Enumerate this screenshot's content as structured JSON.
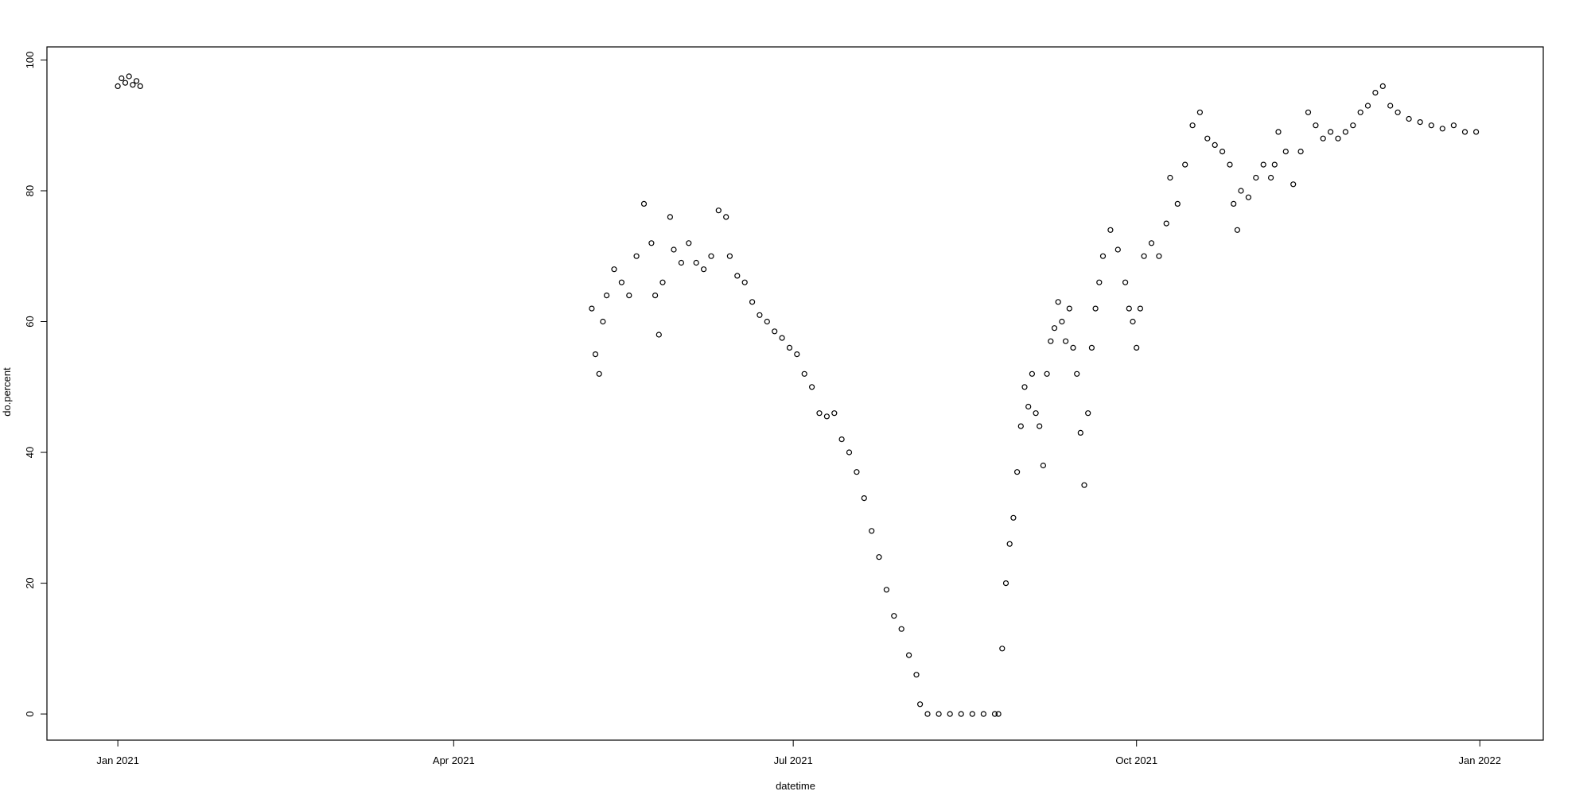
{
  "chart_data": {
    "type": "scatter",
    "title": "",
    "xlabel": "datetime",
    "ylabel": "do.percent",
    "xlim": [
      "2020-12-13",
      "2022-01-18"
    ],
    "ylim": [
      -4,
      102
    ],
    "grid": false,
    "legend": "none",
    "marker": "open-circle",
    "colors": {
      "points": "#000000",
      "axes": "#000000",
      "background": "#ffffff"
    },
    "x_ticks": [
      {
        "value": "2021-01-01",
        "label": "Jan 2021"
      },
      {
        "value": "2021-04-01",
        "label": "Apr 2021"
      },
      {
        "value": "2021-07-01",
        "label": "Jul 2021"
      },
      {
        "value": "2021-10-01",
        "label": "Oct 2021"
      },
      {
        "value": "2022-01-01",
        "label": "Jan 2022"
      }
    ],
    "y_ticks": [
      {
        "value": 0,
        "label": "0"
      },
      {
        "value": 20,
        "label": "20"
      },
      {
        "value": 40,
        "label": "40"
      },
      {
        "value": 60,
        "label": "60"
      },
      {
        "value": 80,
        "label": "80"
      },
      {
        "value": 100,
        "label": "100"
      }
    ],
    "series": [
      {
        "points": [
          [
            "2021-01-01",
            96.0
          ],
          [
            "2021-01-02",
            97.2
          ],
          [
            "2021-01-03",
            96.5
          ],
          [
            "2021-01-04",
            97.5
          ],
          [
            "2021-01-05",
            96.2
          ],
          [
            "2021-01-06",
            96.8
          ],
          [
            "2021-01-07",
            96.0
          ],
          [
            "2021-05-08",
            62.0
          ],
          [
            "2021-05-09",
            55.0
          ],
          [
            "2021-05-10",
            52.0
          ],
          [
            "2021-05-11",
            60.0
          ],
          [
            "2021-05-12",
            64.0
          ],
          [
            "2021-05-14",
            68.0
          ],
          [
            "2021-05-16",
            66.0
          ],
          [
            "2021-05-18",
            64.0
          ],
          [
            "2021-05-20",
            70.0
          ],
          [
            "2021-05-22",
            78.0
          ],
          [
            "2021-05-24",
            72.0
          ],
          [
            "2021-05-25",
            64.0
          ],
          [
            "2021-05-26",
            58.0
          ],
          [
            "2021-05-27",
            66.0
          ],
          [
            "2021-05-29",
            76.0
          ],
          [
            "2021-05-30",
            71.0
          ],
          [
            "2021-06-01",
            69.0
          ],
          [
            "2021-06-03",
            72.0
          ],
          [
            "2021-06-05",
            69.0
          ],
          [
            "2021-06-07",
            68.0
          ],
          [
            "2021-06-09",
            70.0
          ],
          [
            "2021-06-11",
            77.0
          ],
          [
            "2021-06-13",
            76.0
          ],
          [
            "2021-06-14",
            70.0
          ],
          [
            "2021-06-16",
            67.0
          ],
          [
            "2021-06-18",
            66.0
          ],
          [
            "2021-06-20",
            63.0
          ],
          [
            "2021-06-22",
            61.0
          ],
          [
            "2021-06-24",
            60.0
          ],
          [
            "2021-06-26",
            58.5
          ],
          [
            "2021-06-28",
            57.5
          ],
          [
            "2021-06-30",
            56.0
          ],
          [
            "2021-07-02",
            55.0
          ],
          [
            "2021-07-04",
            52.0
          ],
          [
            "2021-07-06",
            50.0
          ],
          [
            "2021-07-08",
            46.0
          ],
          [
            "2021-07-10",
            45.5
          ],
          [
            "2021-07-12",
            46.0
          ],
          [
            "2021-07-14",
            42.0
          ],
          [
            "2021-07-16",
            40.0
          ],
          [
            "2021-07-18",
            37.0
          ],
          [
            "2021-07-20",
            33.0
          ],
          [
            "2021-07-22",
            28.0
          ],
          [
            "2021-07-24",
            24.0
          ],
          [
            "2021-07-26",
            19.0
          ],
          [
            "2021-07-28",
            15.0
          ],
          [
            "2021-07-30",
            13.0
          ],
          [
            "2021-08-01",
            9.0
          ],
          [
            "2021-08-03",
            6.0
          ],
          [
            "2021-08-04",
            1.5
          ],
          [
            "2021-08-06",
            0.0
          ],
          [
            "2021-08-09",
            0.0
          ],
          [
            "2021-08-12",
            0.0
          ],
          [
            "2021-08-15",
            0.0
          ],
          [
            "2021-08-18",
            0.0
          ],
          [
            "2021-08-21",
            0.0
          ],
          [
            "2021-08-24",
            0.0
          ],
          [
            "2021-08-25",
            0.0
          ],
          [
            "2021-08-26",
            10.0
          ],
          [
            "2021-08-27",
            20.0
          ],
          [
            "2021-08-28",
            26.0
          ],
          [
            "2021-08-29",
            30.0
          ],
          [
            "2021-08-30",
            37.0
          ],
          [
            "2021-08-31",
            44.0
          ],
          [
            "2021-09-01",
            50.0
          ],
          [
            "2021-09-02",
            47.0
          ],
          [
            "2021-09-03",
            52.0
          ],
          [
            "2021-09-04",
            46.0
          ],
          [
            "2021-09-05",
            44.0
          ],
          [
            "2021-09-06",
            38.0
          ],
          [
            "2021-09-07",
            52.0
          ],
          [
            "2021-09-08",
            57.0
          ],
          [
            "2021-09-09",
            59.0
          ],
          [
            "2021-09-10",
            63.0
          ],
          [
            "2021-09-11",
            60.0
          ],
          [
            "2021-09-12",
            57.0
          ],
          [
            "2021-09-13",
            62.0
          ],
          [
            "2021-09-14",
            56.0
          ],
          [
            "2021-09-15",
            52.0
          ],
          [
            "2021-09-16",
            43.0
          ],
          [
            "2021-09-17",
            35.0
          ],
          [
            "2021-09-18",
            46.0
          ],
          [
            "2021-09-19",
            56.0
          ],
          [
            "2021-09-20",
            62.0
          ],
          [
            "2021-09-21",
            66.0
          ],
          [
            "2021-09-22",
            70.0
          ],
          [
            "2021-09-24",
            74.0
          ],
          [
            "2021-09-26",
            71.0
          ],
          [
            "2021-09-28",
            66.0
          ],
          [
            "2021-09-29",
            62.0
          ],
          [
            "2021-09-30",
            60.0
          ],
          [
            "2021-10-01",
            56.0
          ],
          [
            "2021-10-02",
            62.0
          ],
          [
            "2021-10-03",
            70.0
          ],
          [
            "2021-10-05",
            72.0
          ],
          [
            "2021-10-07",
            70.0
          ],
          [
            "2021-10-09",
            75.0
          ],
          [
            "2021-10-10",
            82.0
          ],
          [
            "2021-10-12",
            78.0
          ],
          [
            "2021-10-14",
            84.0
          ],
          [
            "2021-10-16",
            90.0
          ],
          [
            "2021-10-18",
            92.0
          ],
          [
            "2021-10-20",
            88.0
          ],
          [
            "2021-10-22",
            87.0
          ],
          [
            "2021-10-24",
            86.0
          ],
          [
            "2021-10-26",
            84.0
          ],
          [
            "2021-10-27",
            78.0
          ],
          [
            "2021-10-28",
            74.0
          ],
          [
            "2021-10-29",
            80.0
          ],
          [
            "2021-10-31",
            79.0
          ],
          [
            "2021-11-02",
            82.0
          ],
          [
            "2021-11-04",
            84.0
          ],
          [
            "2021-11-06",
            82.0
          ],
          [
            "2021-11-07",
            84.0
          ],
          [
            "2021-11-08",
            89.0
          ],
          [
            "2021-11-10",
            86.0
          ],
          [
            "2021-11-12",
            81.0
          ],
          [
            "2021-11-14",
            86.0
          ],
          [
            "2021-11-16",
            92.0
          ],
          [
            "2021-11-18",
            90.0
          ],
          [
            "2021-11-20",
            88.0
          ],
          [
            "2021-11-22",
            89.0
          ],
          [
            "2021-11-24",
            88.0
          ],
          [
            "2021-11-26",
            89.0
          ],
          [
            "2021-11-28",
            90.0
          ],
          [
            "2021-11-30",
            92.0
          ],
          [
            "2021-12-02",
            93.0
          ],
          [
            "2021-12-04",
            95.0
          ],
          [
            "2021-12-06",
            96.0
          ],
          [
            "2021-12-08",
            93.0
          ],
          [
            "2021-12-10",
            92.0
          ],
          [
            "2021-12-13",
            91.0
          ],
          [
            "2021-12-16",
            90.5
          ],
          [
            "2021-12-19",
            90.0
          ],
          [
            "2021-12-22",
            89.5
          ],
          [
            "2021-12-25",
            90.0
          ],
          [
            "2021-12-28",
            89.0
          ],
          [
            "2021-12-31",
            89.0
          ]
        ]
      }
    ]
  }
}
